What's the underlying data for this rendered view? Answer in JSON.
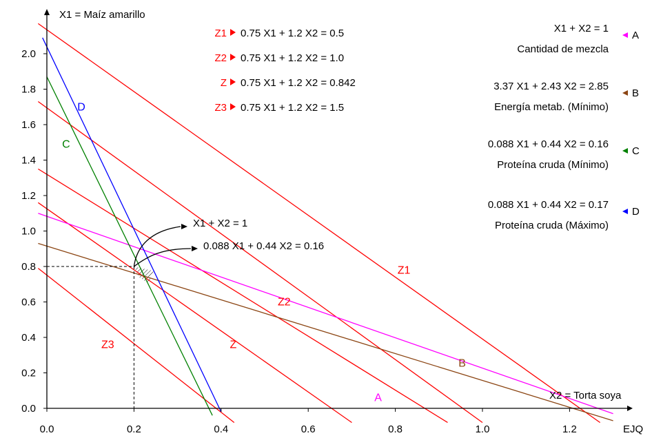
{
  "chart_data": {
    "type": "line",
    "title": "",
    "xlabel": "X2 = Torta soya",
    "ylabel": "X1 = Maíz amarillo",
    "x_end_label": "EJQ",
    "xlim": [
      0,
      1.3
    ],
    "ylim": [
      0,
      2.1
    ],
    "x_ticks": [
      "0.0",
      "0.2",
      "0.4",
      "0.6",
      "0.8",
      "1.0",
      "1.2"
    ],
    "y_ticks": [
      "0.0",
      "0.2",
      "0.4",
      "0.6",
      "0.8",
      "1.0",
      "1.2",
      "1.4",
      "1.6",
      "1.8",
      "2.0"
    ],
    "constraints": [
      {
        "name": "A",
        "equation": "X1 + X2 = 1",
        "description": "Cantidad de mezcla",
        "color": "#ff00ff",
        "a": 1,
        "b": 1,
        "c": 1
      },
      {
        "name": "B",
        "equation": "3.37 X1 + 2.43 X2 = 2.85",
        "description": "Energía metab. (Mínimo)",
        "color": "#8b4513",
        "a": 3.37,
        "b": 2.43,
        "c": 2.85
      },
      {
        "name": "C",
        "equation": "0.088 X1 + 0.44 X2 = 0.16",
        "description": "Proteína cruda (Mínimo)",
        "color": "#008000",
        "a": 0.088,
        "b": 0.44,
        "c": 0.16
      },
      {
        "name": "D",
        "equation": "0.088 X1 + 0.44 X2 = 0.17",
        "description": "Proteína cruda (Máximo)",
        "color": "#0000ff",
        "a": 0.088,
        "b": 0.44,
        "c": 0.17
      }
    ],
    "objective_lines": [
      {
        "name": "Z1",
        "equation": "0.75 X1 + 1.2 X2 = 0.5",
        "color": "#ff0000",
        "a": 0.75,
        "b": 1.2,
        "c": 0.5
      },
      {
        "name": "Z2",
        "equation": "0.75 X1 + 1.2 X2 = 1.0",
        "color": "#ff0000",
        "a": 0.75,
        "b": 1.2,
        "c": 1.0
      },
      {
        "name": "Z",
        "equation": "0.75 X1 + 1.2 X2 = 0.842",
        "color": "#ff0000",
        "a": 0.75,
        "b": 1.2,
        "c": 0.842
      },
      {
        "name": "Z3",
        "equation": "0.75 X1 + 1.2 X2 = 1.5",
        "color": "#ff0000",
        "a": 0.75,
        "b": 1.2,
        "c": 1.5
      }
    ],
    "drawn_lines": [
      {
        "label": "Z1",
        "color": "#ff0000",
        "p1": [
          -0.02,
          2.17
        ],
        "p2": [
          1.27,
          -0.08
        ]
      },
      {
        "label": "Z2",
        "color": "#ff0000",
        "p1": [
          -0.02,
          1.35
        ],
        "p2": [
          0.92,
          -0.08
        ]
      },
      {
        "label": "Z",
        "color": "#ff0000",
        "p1": [
          -0.02,
          1.16
        ],
        "p2": [
          0.7,
          -0.08
        ]
      },
      {
        "label": "Z3",
        "color": "#ff0000",
        "p1": [
          -0.02,
          0.79
        ],
        "p2": [
          0.43,
          -0.08
        ]
      },
      {
        "label": "Z2",
        "color": "#ff0000",
        "p1": [
          -0.02,
          1.73
        ],
        "p2": [
          1.0,
          -0.08
        ]
      },
      {
        "label": "A",
        "color": "#ff00ff",
        "p1": [
          -0.02,
          1.1
        ],
        "p2": [
          1.3,
          -0.03
        ]
      },
      {
        "label": "B",
        "color": "#8b4513",
        "p1": [
          -0.02,
          0.93
        ],
        "p2": [
          1.3,
          -0.07
        ]
      },
      {
        "label": "C",
        "color": "#008000",
        "p1": [
          0.0,
          1.87
        ],
        "p2": [
          0.38,
          -0.04
        ]
      },
      {
        "label": "D",
        "color": "#0000ff",
        "p1": [
          -0.01,
          2.09
        ],
        "p2": [
          0.4,
          -0.02
        ]
      }
    ],
    "optimum_point": {
      "x": 0.2,
      "y": 0.8
    },
    "annotations": [
      "X1 + X2 = 1",
      "0.088 X1 + 0.44 X2 = 0.16"
    ],
    "grid": false,
    "legend": "top-right"
  }
}
